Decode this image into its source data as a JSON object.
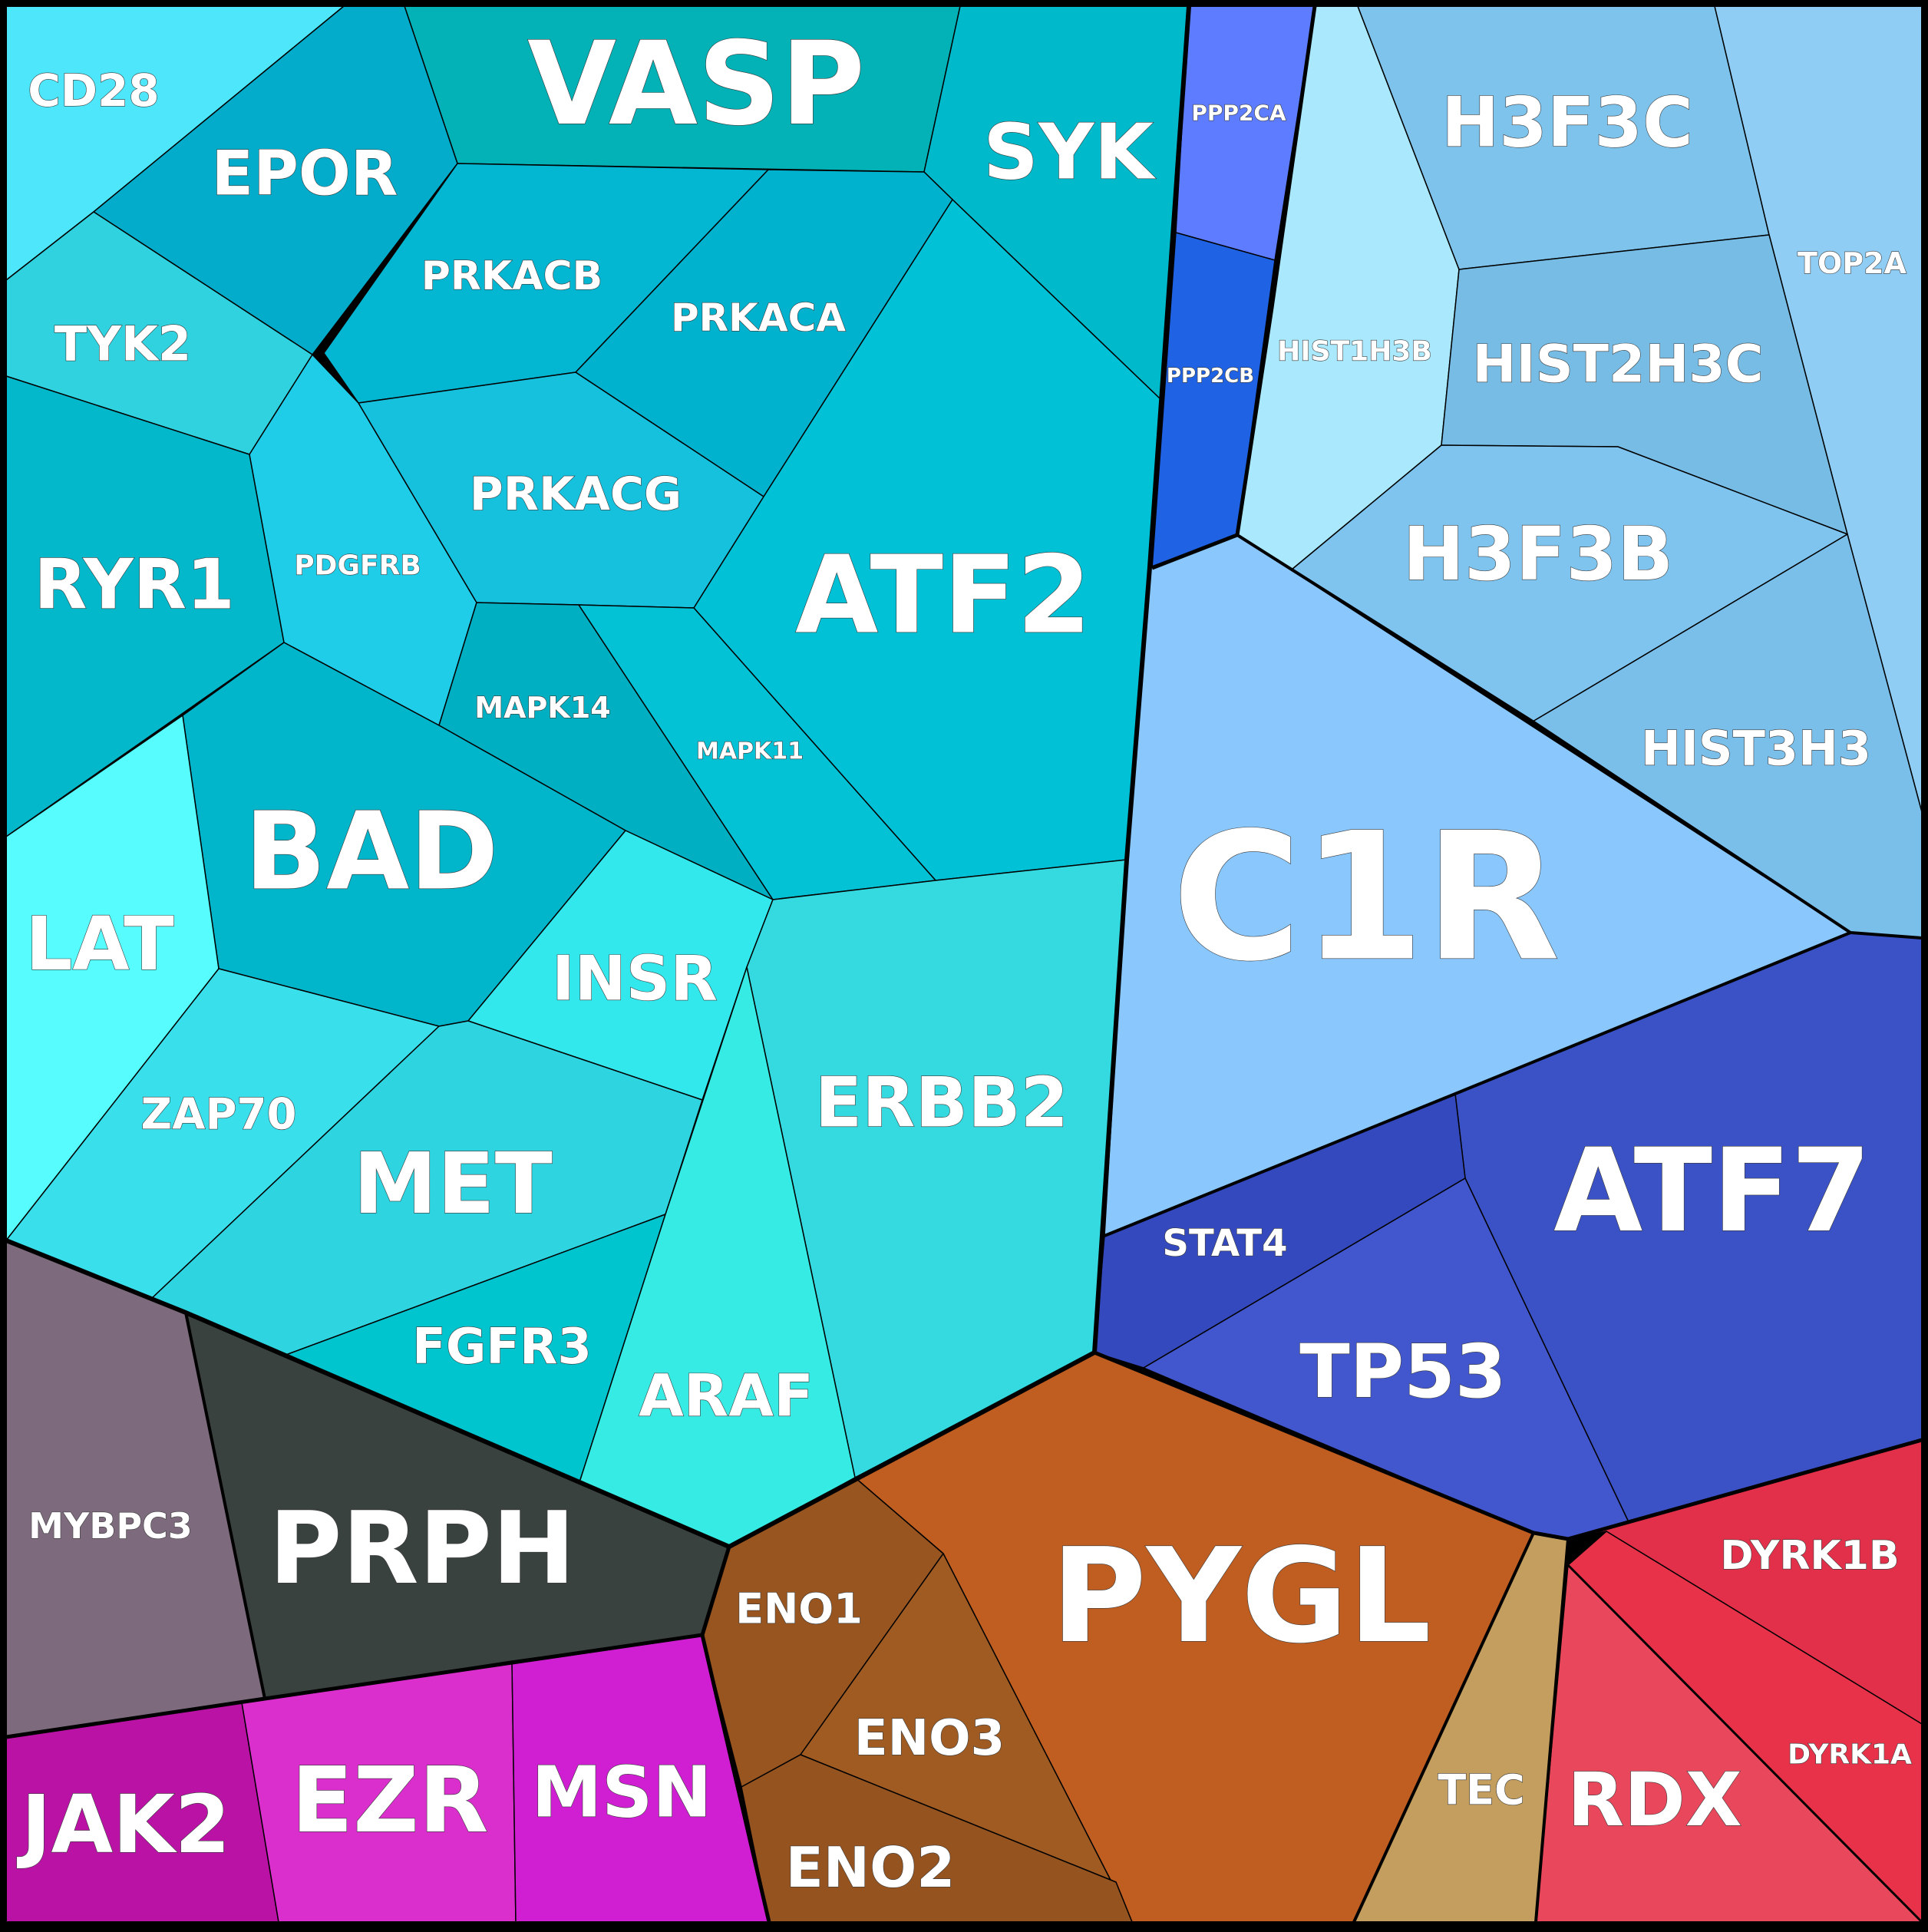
{
  "chart_data": {
    "type": "voronoi-treemap",
    "title": "",
    "cells": [
      {
        "label": "CD28",
        "color": "#4de6fb"
      },
      {
        "label": "VASP",
        "color": "#02b2b7"
      },
      {
        "label": "EPOR",
        "color": "#02acca"
      },
      {
        "label": "SYK",
        "color": "#00bacb"
      },
      {
        "label": "TYK2",
        "color": "#2fd2de"
      },
      {
        "label": "PRKACB",
        "color": "#03b6d1"
      },
      {
        "label": "PRKACA",
        "color": "#00b2ce"
      },
      {
        "label": "RYR1",
        "color": "#02b8ca"
      },
      {
        "label": "PDGFRB",
        "color": "#20cde8"
      },
      {
        "label": "PRKACG",
        "color": "#16c1de"
      },
      {
        "label": "ATF2",
        "color": "#00c1d5"
      },
      {
        "label": "MAPK14",
        "color": "#00b0c2"
      },
      {
        "label": "MAPK11",
        "color": "#03c2d6"
      },
      {
        "label": "BAD",
        "color": "#01b5cb"
      },
      {
        "label": "LAT",
        "color": "#57fdfe"
      },
      {
        "label": "INSR",
        "color": "#32e8ec"
      },
      {
        "label": "ZAP70",
        "color": "#39e0ec"
      },
      {
        "label": "MET",
        "color": "#2ed5e0"
      },
      {
        "label": "ERBB2",
        "color": "#34dadf"
      },
      {
        "label": "FGFR3",
        "color": "#00c5cf"
      },
      {
        "label": "ARAF",
        "color": "#36ebe4"
      },
      {
        "label": "PPP2CA",
        "color": "#5d7cff"
      },
      {
        "label": "PPP2CB",
        "color": "#1f62e3"
      },
      {
        "label": "HIST1H3B",
        "color": "#aae9fd"
      },
      {
        "label": "H3F3C",
        "color": "#7ec3ec"
      },
      {
        "label": "TOP2A",
        "color": "#90cdf4"
      },
      {
        "label": "HIST2H3C",
        "color": "#76bce5"
      },
      {
        "label": "H3F3B",
        "color": "#7ec4ef"
      },
      {
        "label": "HIST3H3",
        "color": "#7abeea"
      },
      {
        "label": "C1R",
        "color": "#8ac7fd"
      },
      {
        "label": "ATF7",
        "color": "#3b52c6"
      },
      {
        "label": "STAT4",
        "color": "#3449bd"
      },
      {
        "label": "TP53",
        "color": "#4257cd"
      },
      {
        "label": "MYBPC3",
        "color": "#7d6a7d"
      },
      {
        "label": "PRPH",
        "color": "#3a423f"
      },
      {
        "label": "PYGL",
        "color": "#c05e22"
      },
      {
        "label": "ENO1",
        "color": "#985520"
      },
      {
        "label": "ENO3",
        "color": "#9f5b22"
      },
      {
        "label": "ENO2",
        "color": "#95531f"
      },
      {
        "label": "TEC",
        "color": "#c39e5e"
      },
      {
        "label": "DYRK1B",
        "color": "#e3304a"
      },
      {
        "label": "DYRK1A",
        "color": "#e8324a"
      },
      {
        "label": "RDX",
        "color": "#e8475c"
      },
      {
        "label": "JAK2",
        "color": "#bb12a6"
      },
      {
        "label": "EZR",
        "color": "#da2ecd"
      },
      {
        "label": "MSN",
        "color": "#d01ed3"
      }
    ]
  }
}
